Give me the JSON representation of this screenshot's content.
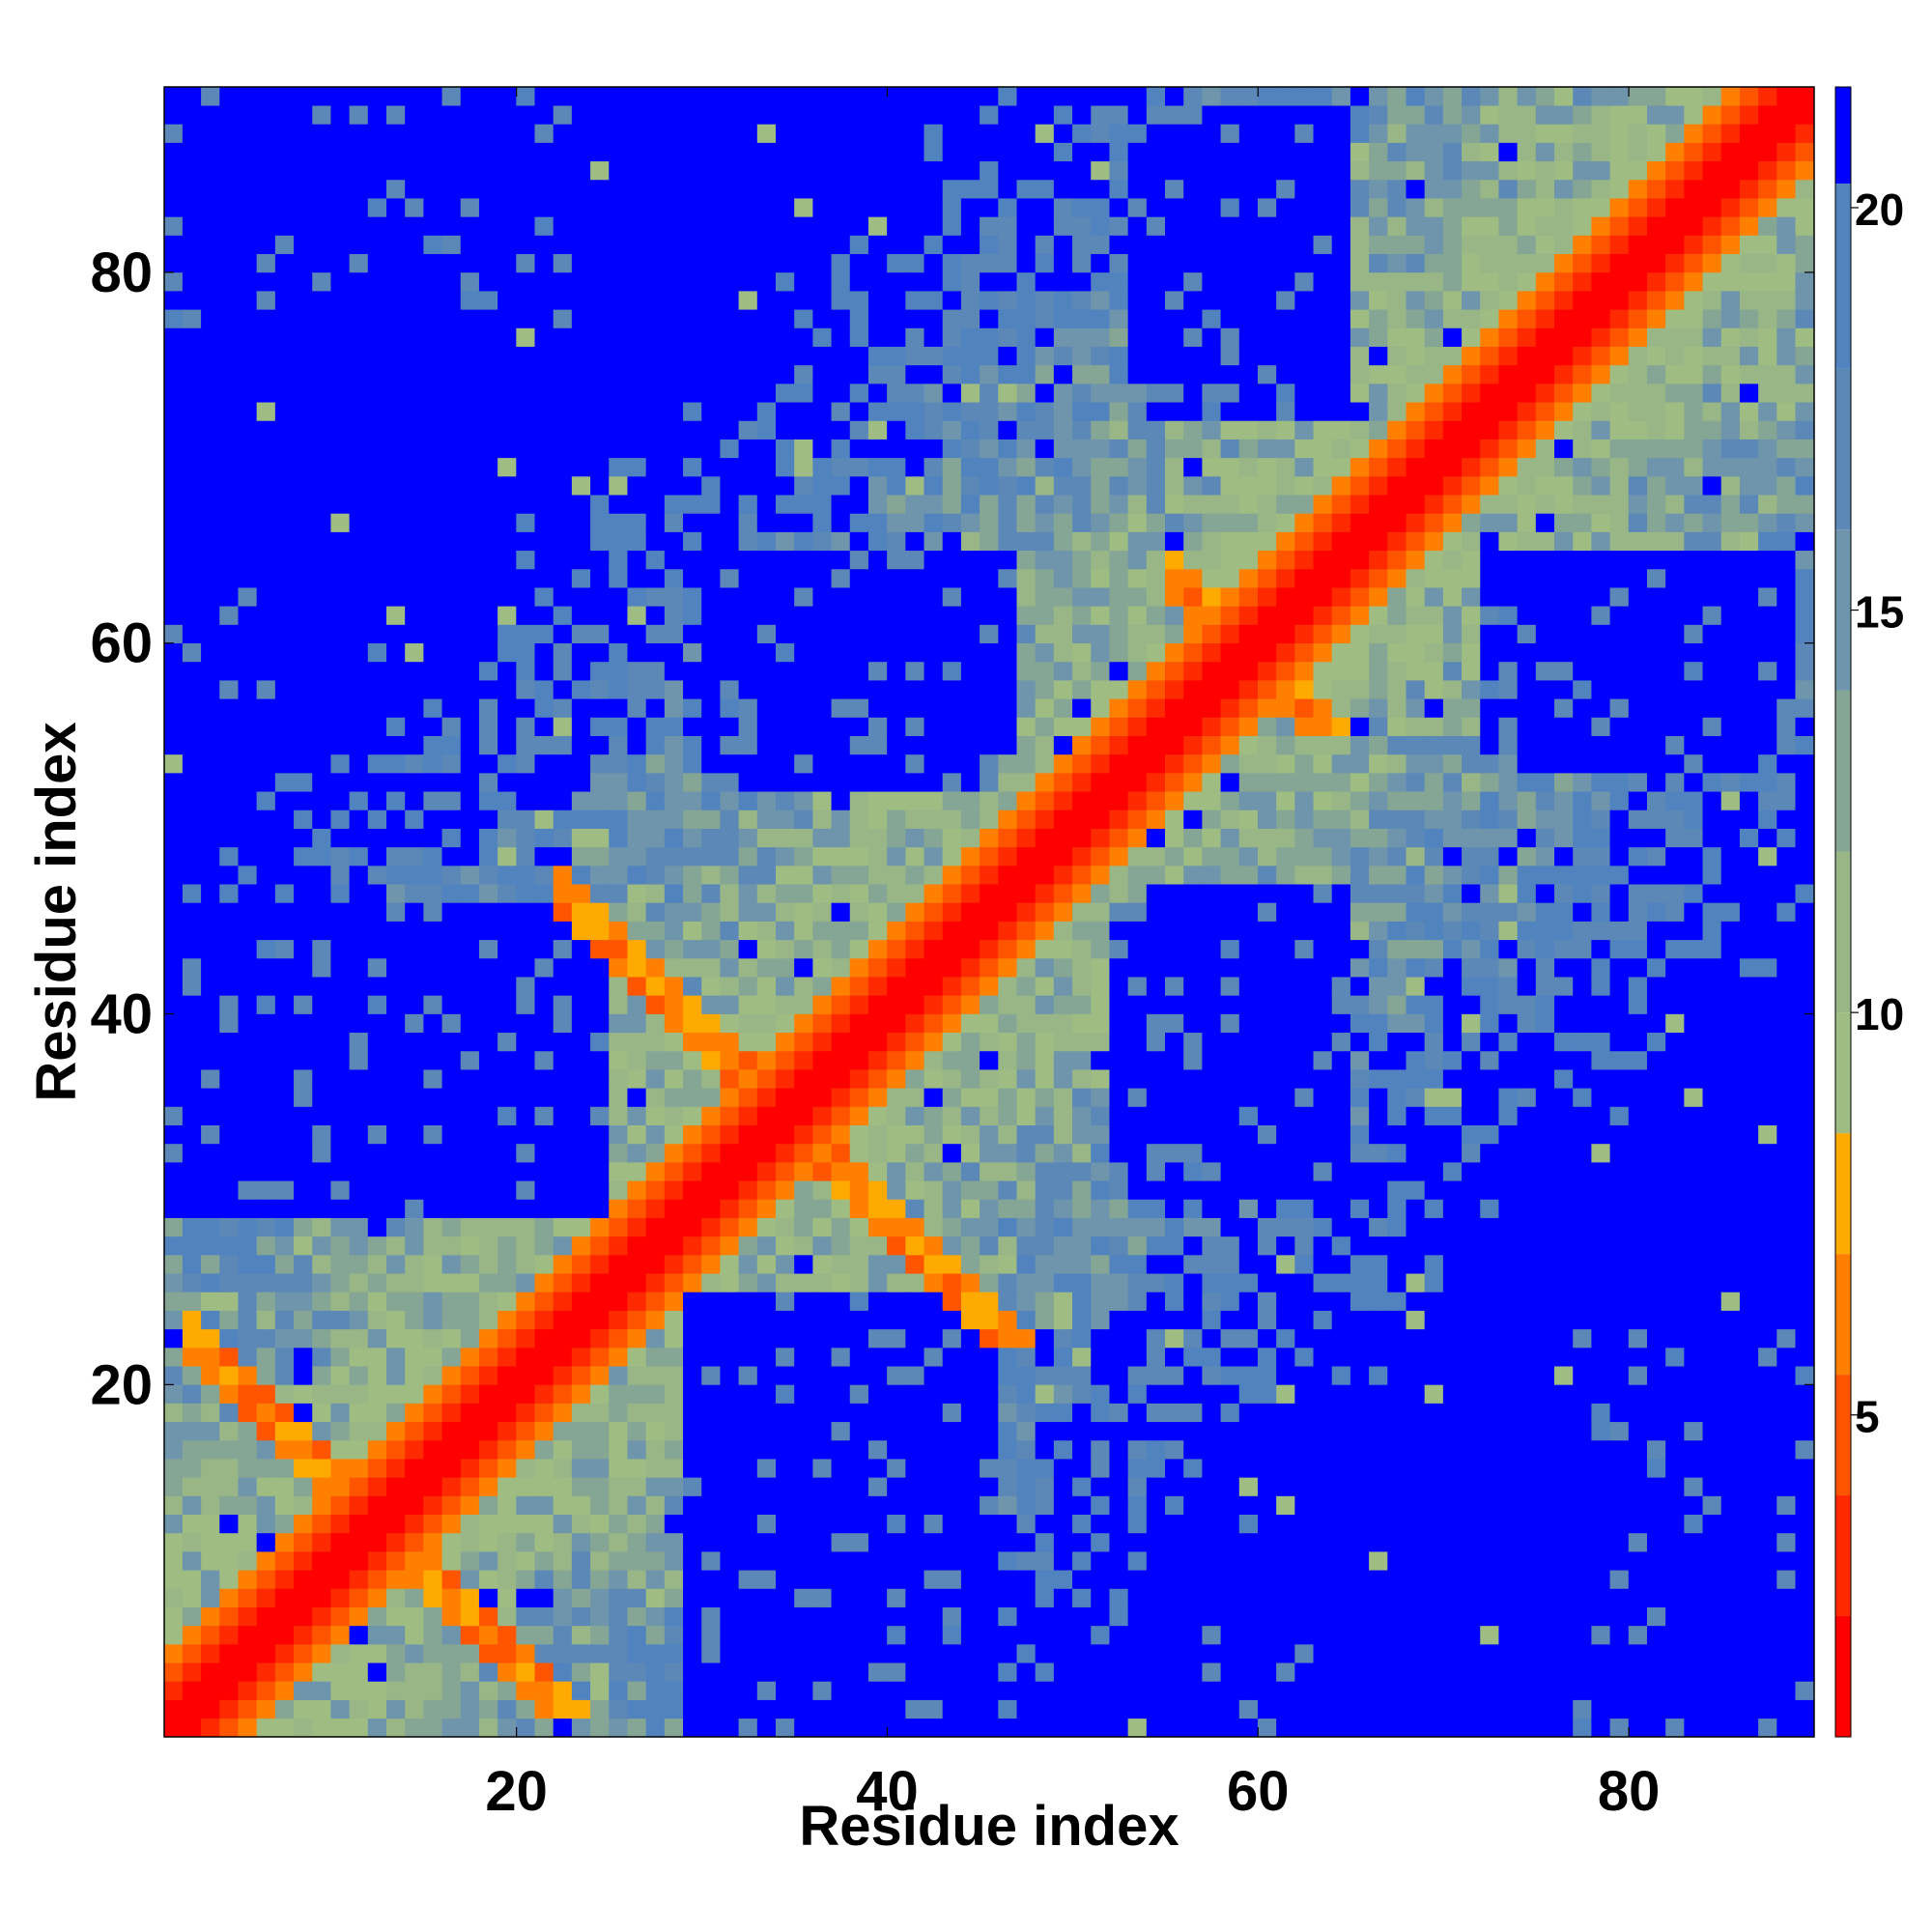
{
  "chart_data": {
    "type": "heatmap",
    "title": "",
    "xlabel": "Residue index",
    "ylabel": "Residue index",
    "xlim": [
      1,
      90
    ],
    "ylim": [
      1,
      90
    ],
    "n_residues": 89,
    "x_ticks": [
      20,
      40,
      60,
      80
    ],
    "y_ticks": [
      20,
      40,
      60,
      80
    ],
    "x_tick_labels": [
      "20",
      "40",
      "60",
      "80"
    ],
    "y_tick_labels": [
      "20",
      "40",
      "60",
      "80"
    ],
    "grid": false,
    "colorbar": {
      "position": "right",
      "range": [
        1,
        21.5
      ],
      "ticks": [
        5,
        10,
        15,
        20
      ],
      "tick_labels": [
        "5",
        "10",
        "15",
        "20"
      ],
      "bands": [
        {
          "from": 1,
          "to": 2.5,
          "color": "#ff0000"
        },
        {
          "from": 2.5,
          "to": 4,
          "color": "#ff2a00"
        },
        {
          "from": 4,
          "to": 5.5,
          "color": "#ff5500"
        },
        {
          "from": 5.5,
          "to": 7,
          "color": "#ff8000"
        },
        {
          "from": 7,
          "to": 8.5,
          "color": "#ffaa00"
        },
        {
          "from": 8.5,
          "to": 10,
          "color": "#9fbc82"
        },
        {
          "from": 10,
          "to": 12,
          "color": "#98b686"
        },
        {
          "from": 12,
          "to": 14,
          "color": "#86a695"
        },
        {
          "from": 14,
          "to": 16,
          "color": "#6e95ab"
        },
        {
          "from": 16,
          "to": 18,
          "color": "#5c88b8"
        },
        {
          "from": 18,
          "to": 20.3,
          "color": "#5183bf"
        },
        {
          "from": 20.3,
          "to": 21.5,
          "color": "#0000ff"
        }
      ]
    },
    "value_description": "distance between residues i and j; small near diagonal, large (saturated blue) in off-diagonal blocks",
    "blue_blocks": [
      {
        "x": [
          30,
          45
        ],
        "y": [
          52,
          64
        ]
      },
      {
        "x": [
          54,
          64
        ],
        "y": [
          72,
          88
        ]
      },
      {
        "x": [
          54,
          64
        ],
        "y": [
          30,
          46
        ]
      },
      {
        "x": [
          74,
          86
        ],
        "y": [
          53,
          63
        ]
      },
      {
        "x": [
          1,
          24
        ],
        "y": [
          29,
          44
        ]
      },
      {
        "x": [
          30,
          45
        ],
        "y": [
          1,
          22
        ]
      },
      {
        "x": [
          77,
          89
        ],
        "y": [
          1,
          22
        ]
      },
      {
        "x": [
          55,
          63
        ],
        "y": [
          1,
          5
        ]
      },
      {
        "x": [
          1,
          16
        ],
        "y": [
          78,
          89
        ]
      },
      {
        "x": [
          1,
          6
        ],
        "y": [
          56,
          63
        ]
      }
    ],
    "contact_bands": [
      {
        "type": "anti-diagonal",
        "sum": 24,
        "range": [
          2,
          20
        ]
      },
      {
        "type": "parallel",
        "offset": 3,
        "range": [
          45,
          75
        ]
      },
      {
        "type": "anti-diagonal",
        "sum": 68,
        "range": [
          22,
          48
        ]
      },
      {
        "type": "anti-diagonal",
        "sum": 118,
        "range": [
          55,
          65
        ]
      }
    ]
  }
}
